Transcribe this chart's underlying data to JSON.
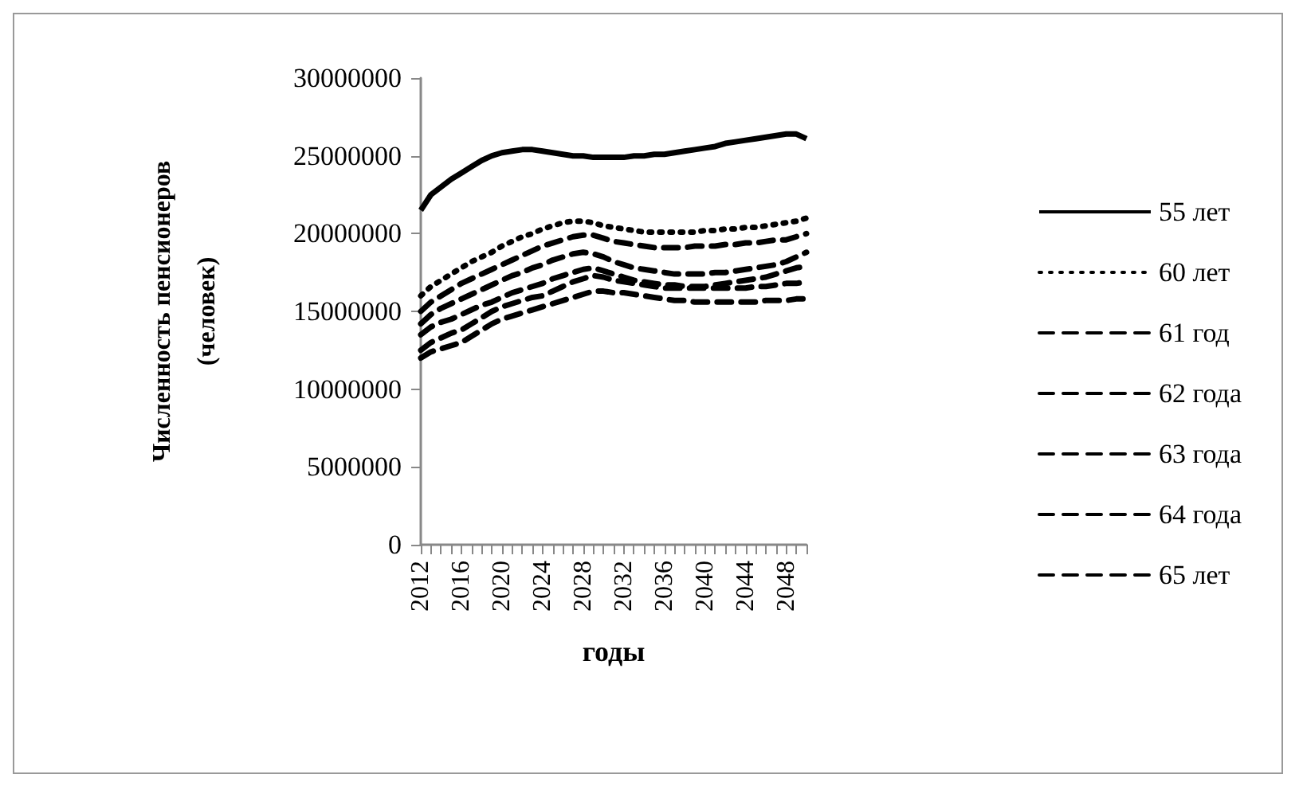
{
  "chart_data": {
    "type": "line",
    "xlabel": "годы",
    "ylabel": "Численность пенсионеров\n(человек)",
    "categories": [
      "2012",
      null,
      null,
      null,
      "2016",
      null,
      null,
      null,
      "2020",
      null,
      null,
      null,
      "2024",
      null,
      null,
      null,
      "2028",
      null,
      null,
      null,
      "2032",
      null,
      null,
      null,
      "2036",
      null,
      null,
      null,
      "2040",
      null,
      null,
      null,
      "2044",
      null,
      null,
      null,
      "2048",
      null,
      null
    ],
    "series": [
      {
        "name": "55 лет",
        "color": "#000000",
        "line_style": "solid",
        "values": [
          21500000,
          22500000,
          23000000,
          23500000,
          23900000,
          24300000,
          24700000,
          25000000,
          25200000,
          25300000,
          25400000,
          25400000,
          25300000,
          25200000,
          25100000,
          25000000,
          25000000,
          24900000,
          24900000,
          24900000,
          24900000,
          25000000,
          25000000,
          25100000,
          25100000,
          25200000,
          25300000,
          25400000,
          25500000,
          25600000,
          25800000,
          25900000,
          26000000,
          26100000,
          26200000,
          26300000,
          26400000,
          26400000,
          26100000
        ]
      },
      {
        "name": "60 лет",
        "color": "#000000",
        "line_style": "dotted",
        "values": [
          16000000,
          16600000,
          17000000,
          17400000,
          17800000,
          18200000,
          18500000,
          18800000,
          19200000,
          19500000,
          19800000,
          20000000,
          20300000,
          20500000,
          20700000,
          20800000,
          20800000,
          20700000,
          20500000,
          20400000,
          20300000,
          20200000,
          20100000,
          20100000,
          20100000,
          20100000,
          20100000,
          20100000,
          20200000,
          20200000,
          20300000,
          20300000,
          20400000,
          20400000,
          20500000,
          20600000,
          20700000,
          20800000,
          21000000
        ]
      },
      {
        "name": "61 год",
        "color": "#000000",
        "line_style": "dashed",
        "values": [
          15000000,
          15600000,
          16000000,
          16400000,
          16800000,
          17100000,
          17400000,
          17700000,
          18000000,
          18300000,
          18600000,
          18900000,
          19200000,
          19400000,
          19600000,
          19800000,
          19900000,
          19900000,
          19700000,
          19500000,
          19400000,
          19300000,
          19200000,
          19100000,
          19100000,
          19100000,
          19100000,
          19200000,
          19200000,
          19200000,
          19300000,
          19300000,
          19400000,
          19400000,
          19500000,
          19600000,
          19600000,
          19800000,
          20000000
        ]
      },
      {
        "name": "62 года",
        "color": "#000000",
        "line_style": "dashed",
        "values": [
          14200000,
          14800000,
          15200000,
          15500000,
          15800000,
          16100000,
          16400000,
          16700000,
          17000000,
          17300000,
          17500000,
          17800000,
          18000000,
          18300000,
          18500000,
          18700000,
          18800000,
          18700000,
          18500000,
          18200000,
          18000000,
          17800000,
          17700000,
          17600000,
          17500000,
          17400000,
          17400000,
          17400000,
          17400000,
          17500000,
          17500000,
          17600000,
          17700000,
          17800000,
          17900000,
          18000000,
          18200000,
          18500000,
          18800000
        ]
      },
      {
        "name": "63 года",
        "color": "#000000",
        "line_style": "dashed",
        "values": [
          13500000,
          14000000,
          14300000,
          14500000,
          14800000,
          15100000,
          15400000,
          15600000,
          15900000,
          16200000,
          16400000,
          16600000,
          16800000,
          17100000,
          17300000,
          17500000,
          17700000,
          17800000,
          17600000,
          17400000,
          17200000,
          17000000,
          16900000,
          16800000,
          16700000,
          16700000,
          16600000,
          16600000,
          16600000,
          16700000,
          16800000,
          16900000,
          17000000,
          17100000,
          17200000,
          17400000,
          17600000,
          17800000,
          17900000
        ]
      },
      {
        "name": "64 года",
        "color": "#000000",
        "line_style": "dashed",
        "values": [
          12500000,
          13000000,
          13300000,
          13600000,
          13800000,
          14200000,
          14600000,
          15000000,
          15300000,
          15500000,
          15700000,
          15900000,
          16000000,
          16300000,
          16600000,
          16900000,
          17100000,
          17300000,
          17200000,
          17000000,
          16900000,
          16800000,
          16700000,
          16600000,
          16500000,
          16500000,
          16500000,
          16500000,
          16500000,
          16500000,
          16500000,
          16500000,
          16500000,
          16600000,
          16600000,
          16700000,
          16800000,
          16800000,
          16900000
        ]
      },
      {
        "name": "65 лет",
        "color": "#000000",
        "line_style": "dashed",
        "values": [
          12000000,
          12400000,
          12600000,
          12800000,
          13000000,
          13400000,
          13800000,
          14200000,
          14500000,
          14700000,
          14900000,
          15100000,
          15300000,
          15500000,
          15700000,
          15900000,
          16100000,
          16300000,
          16300000,
          16200000,
          16200000,
          16100000,
          16000000,
          15900000,
          15800000,
          15700000,
          15700000,
          15600000,
          15600000,
          15600000,
          15600000,
          15600000,
          15600000,
          15600000,
          15700000,
          15700000,
          15700000,
          15800000,
          15800000
        ]
      }
    ],
    "ylim": [
      0,
      30000000
    ],
    "yticks": [
      0,
      5000000,
      10000000,
      15000000,
      20000000,
      25000000,
      30000000
    ],
    "grid": false,
    "legend": "right",
    "marker": "none"
  }
}
